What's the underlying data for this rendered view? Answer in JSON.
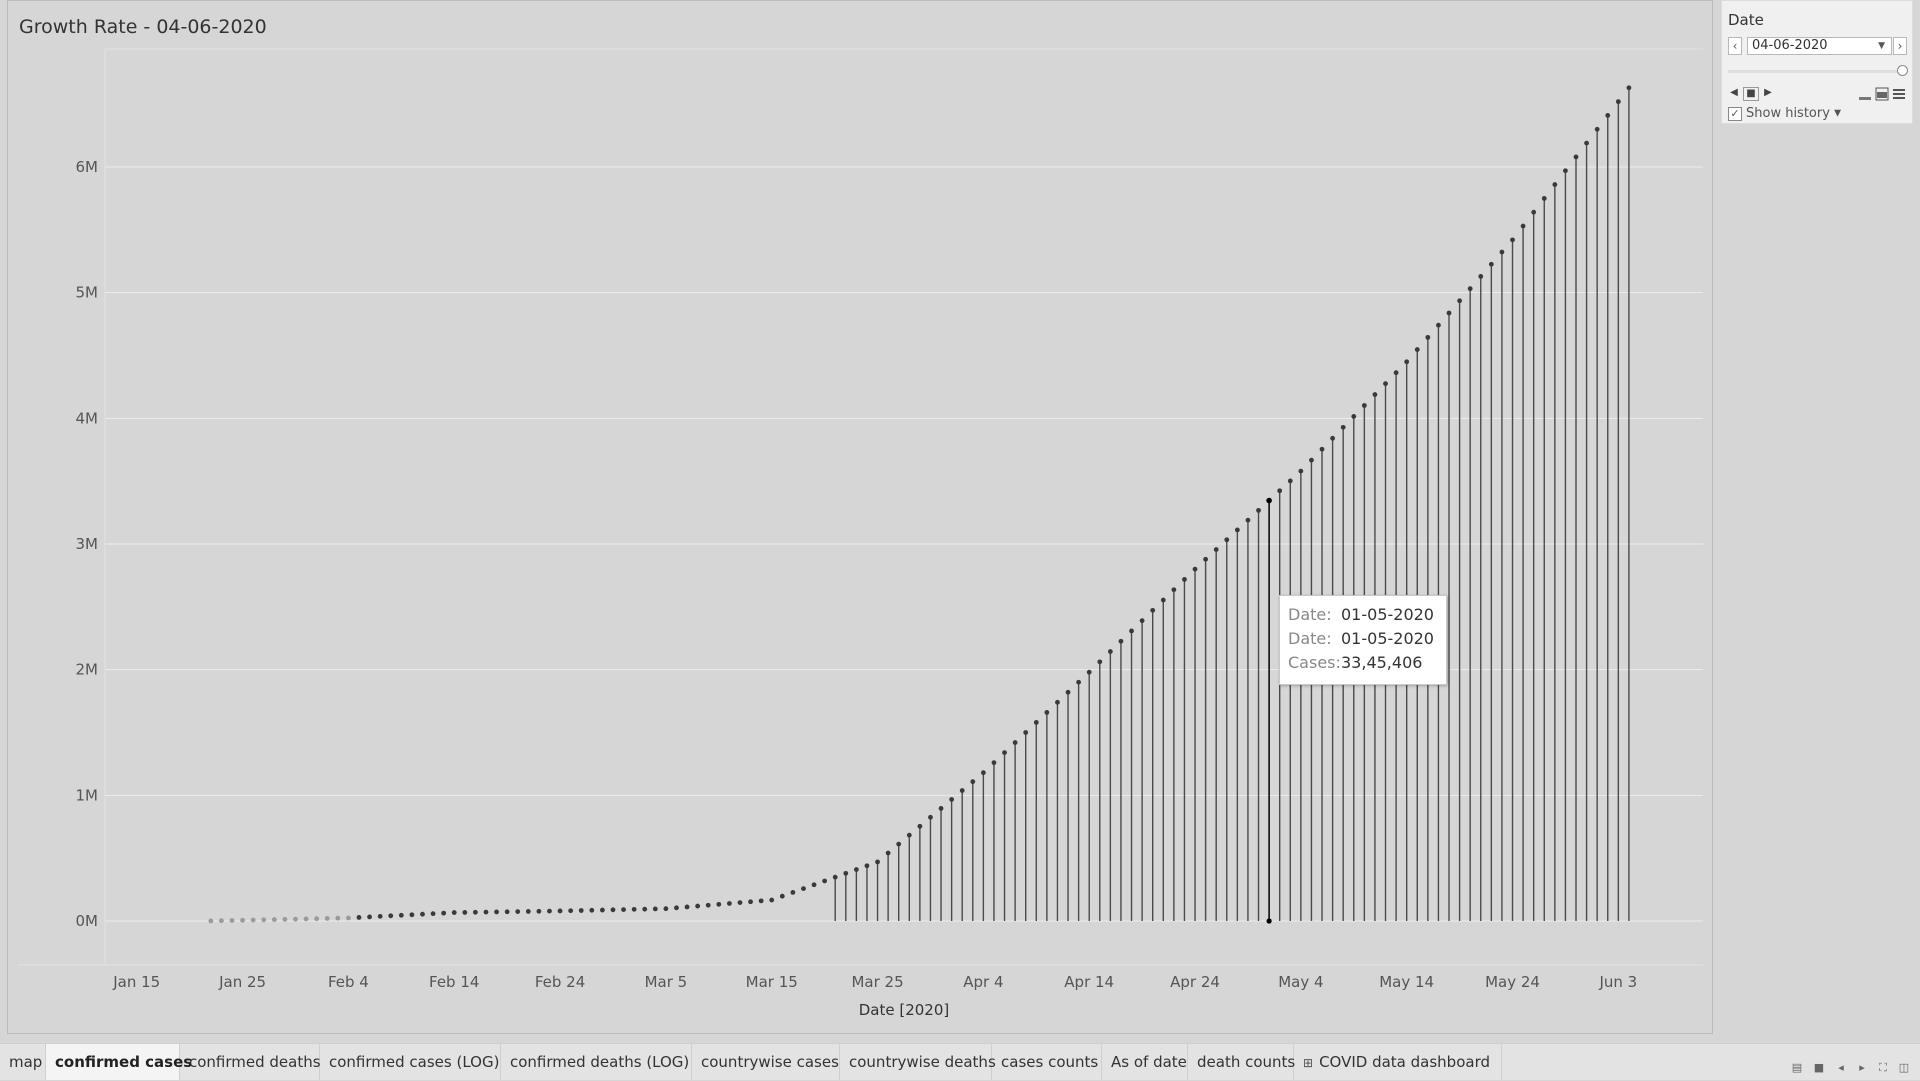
{
  "chart": {
    "title": "Growth Rate - 04-06-2020",
    "x_axis_title": "Date [2020]",
    "y_ticks": [
      "0M",
      "1M",
      "2M",
      "3M",
      "4M",
      "5M",
      "6M"
    ],
    "x_ticks": [
      "Jan 15",
      "Jan 25",
      "Feb 4",
      "Feb 14",
      "Feb 24",
      "Mar 5",
      "Mar 15",
      "Mar 25",
      "Apr 4",
      "Apr 14",
      "Apr 24",
      "May 4",
      "May 14",
      "May 24",
      "Jun 3"
    ]
  },
  "chart_data": {
    "type": "line",
    "mark_style": "drop lines with points",
    "title": "Growth Rate - 04-06-2020",
    "xlabel": "Date [2020]",
    "ylabel": "",
    "x_start": "2020-01-22",
    "x_end": "2020-06-04",
    "xlim": [
      "2020-01-12",
      "2020-06-11"
    ],
    "ylim": [
      0,
      6700000
    ],
    "grid": true,
    "anchor_points": [
      {
        "date": "2020-01-22",
        "cases": 555
      },
      {
        "date": "2020-02-04",
        "cases": 24000
      },
      {
        "date": "2020-02-14",
        "cases": 67000
      },
      {
        "date": "2020-02-24",
        "cases": 80000
      },
      {
        "date": "2020-03-05",
        "cases": 98000
      },
      {
        "date": "2020-03-15",
        "cases": 167000
      },
      {
        "date": "2020-03-25",
        "cases": 470000
      },
      {
        "date": "2020-04-04",
        "cases": 1180000
      },
      {
        "date": "2020-04-14",
        "cases": 1980000
      },
      {
        "date": "2020-04-24",
        "cases": 2800000
      },
      {
        "date": "2020-05-01",
        "cases": 3345406
      },
      {
        "date": "2020-05-04",
        "cases": 3580000
      },
      {
        "date": "2020-05-14",
        "cases": 4450000
      },
      {
        "date": "2020-05-24",
        "cases": 5420000
      },
      {
        "date": "2020-06-04",
        "cases": 6630000
      }
    ],
    "highlighted": {
      "date": "2020-05-01",
      "cases": 3345406
    }
  },
  "tooltip": {
    "rows": [
      {
        "label": "Date:",
        "value": "01-05-2020"
      },
      {
        "label": "Date:",
        "value": "01-05-2020"
      },
      {
        "label": "Cases:",
        "value": "33,45,406"
      }
    ]
  },
  "filter": {
    "title": "Date",
    "selected": "04-06-2020",
    "prev_icon": "chevron-left-icon",
    "next_icon": "chevron-right-icon",
    "show_history_label": "Show history",
    "show_history_checked": true
  },
  "tabs": [
    {
      "label": "map",
      "active": false
    },
    {
      "label": "confirmed cases",
      "active": true
    },
    {
      "label": "confirmed deaths",
      "active": false
    },
    {
      "label": "confirmed cases (LOG)",
      "active": false
    },
    {
      "label": "confirmed deaths (LOG)",
      "active": false
    },
    {
      "label": "countrywise cases",
      "active": false
    },
    {
      "label": "countrywise deaths",
      "active": false
    },
    {
      "label": "cases counts",
      "active": false
    },
    {
      "label": "As of date",
      "active": false
    },
    {
      "label": "death counts",
      "active": false
    },
    {
      "label": "COVID data dashboard",
      "active": false,
      "icon": "dashboard-grid-icon"
    }
  ],
  "colors": {
    "background": "#d6d6d6",
    "gridline": "#ececec",
    "line": "#4a4a4a",
    "point": "#3a3a3a",
    "faded_point": "#9a9a9a",
    "highlight": "#000000"
  }
}
